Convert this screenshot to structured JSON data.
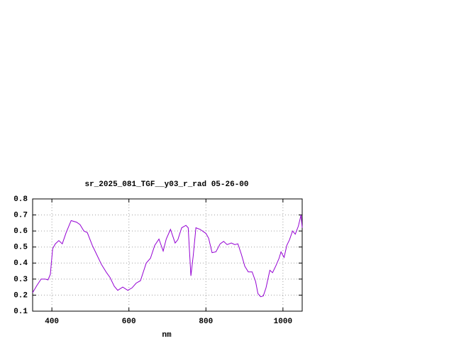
{
  "chart_data": {
    "type": "line",
    "title": "sr_2025_081_TGF__y03_r_rad 05-26-00",
    "x_label": "nm",
    "xlim": [
      350,
      1050
    ],
    "xticks": [
      400,
      600,
      800,
      1000
    ],
    "ylim": [
      0.1,
      0.8
    ],
    "yticks": [
      0.1,
      0.2,
      0.3,
      0.4,
      0.5,
      0.6,
      0.7,
      0.8
    ],
    "grid": true,
    "series": [
      {
        "color": "#9400d3",
        "x": [
          350,
          361,
          372,
          383,
          390,
          396,
          402,
          409,
          418,
          427,
          437,
          450,
          464,
          473,
          483,
          492,
          505,
          516,
          529,
          542,
          551,
          562,
          571,
          584,
          597,
          608,
          619,
          630,
          645,
          656,
          667,
          678,
          689,
          697,
          708,
          720,
          727,
          737,
          748,
          754,
          757,
          761,
          767,
          774,
          785,
          800,
          807,
          816,
          826,
          837,
          846,
          855,
          866,
          875,
          883,
          892,
          901,
          910,
          920,
          929,
          935,
          942,
          949,
          956,
          966,
          973,
          982,
          990,
          995,
          1003,
          1010,
          1017,
          1025,
          1032,
          1040,
          1047,
          1050
        ],
        "values": [
          0.215,
          0.26,
          0.3,
          0.3,
          0.295,
          0.33,
          0.49,
          0.52,
          0.54,
          0.52,
          0.59,
          0.665,
          0.655,
          0.64,
          0.6,
          0.59,
          0.51,
          0.455,
          0.39,
          0.34,
          0.31,
          0.255,
          0.23,
          0.25,
          0.23,
          0.245,
          0.275,
          0.29,
          0.4,
          0.43,
          0.51,
          0.55,
          0.475,
          0.55,
          0.61,
          0.525,
          0.545,
          0.62,
          0.635,
          0.62,
          0.49,
          0.32,
          0.445,
          0.62,
          0.61,
          0.585,
          0.555,
          0.465,
          0.47,
          0.52,
          0.535,
          0.515,
          0.525,
          0.515,
          0.52,
          0.455,
          0.38,
          0.345,
          0.345,
          0.285,
          0.21,
          0.19,
          0.195,
          0.245,
          0.355,
          0.34,
          0.385,
          0.43,
          0.47,
          0.435,
          0.51,
          0.545,
          0.6,
          0.58,
          0.63,
          0.7,
          0.62
        ]
      }
    ]
  }
}
